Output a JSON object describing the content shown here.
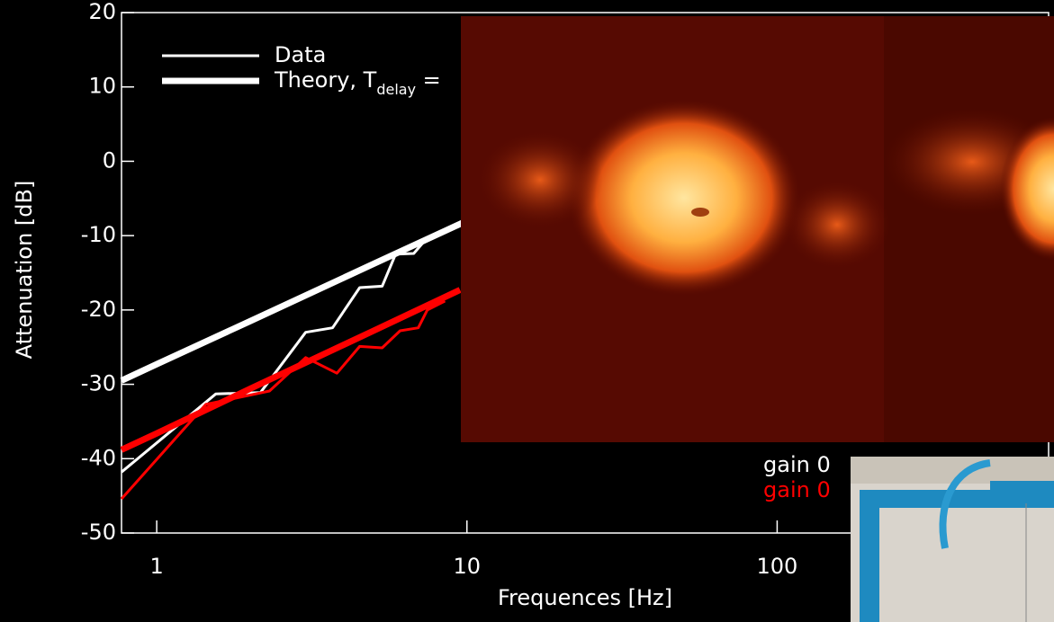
{
  "chart_data": {
    "type": "line",
    "x_label": "Frequences [Hz]",
    "y_label": "Attenuation [dB]",
    "xlim": [
      0.77,
      750
    ],
    "ylim": [
      -50,
      20
    ],
    "x_log": true,
    "xticks": [
      1,
      10,
      100
    ],
    "yticks": [
      -50,
      -40,
      -30,
      -20,
      -10,
      0,
      10,
      20
    ],
    "legend": [
      {
        "label": "Data"
      },
      {
        "label": "Theory, T",
        "sub": "delay",
        "tail": " ="
      }
    ],
    "annotations": [
      "gain 0",
      "gain 0"
    ],
    "series": [
      {
        "color": "#ffffff",
        "width": 7,
        "x": [
          0.77,
          1,
          2,
          5,
          10
        ],
        "values": [
          -29.5,
          -27.3,
          -21.5,
          -13.8,
          -8.0
        ]
      },
      {
        "color": "#ffffff",
        "width": 3,
        "x": [
          0.77,
          1.55,
          2.16,
          3.02,
          3.69,
          4.51,
          5.33,
          5.89,
          6.74,
          7.2
        ],
        "values": [
          -41.8,
          -31.3,
          -31.1,
          -23,
          -22.4,
          -17,
          -16.8,
          -12.5,
          -12.4,
          -11
        ]
      },
      {
        "color": "#ff0000",
        "width": 7,
        "x": [
          0.77,
          1,
          2,
          5,
          9.5
        ],
        "values": [
          -38.8,
          -36.6,
          -30.6,
          -22.8,
          -17.3
        ]
      },
      {
        "color": "#ff0000",
        "width": 3,
        "x": [
          0.77,
          1.44,
          2.31,
          3.02,
          3.81,
          4.51,
          5.33,
          6.09,
          6.97,
          7.45,
          8.5
        ],
        "values": [
          -45.4,
          -32.7,
          -30.9,
          -26.4,
          -28.5,
          -24.9,
          -25.1,
          -22.8,
          -22.4,
          -20,
          -18.8
        ]
      }
    ]
  }
}
